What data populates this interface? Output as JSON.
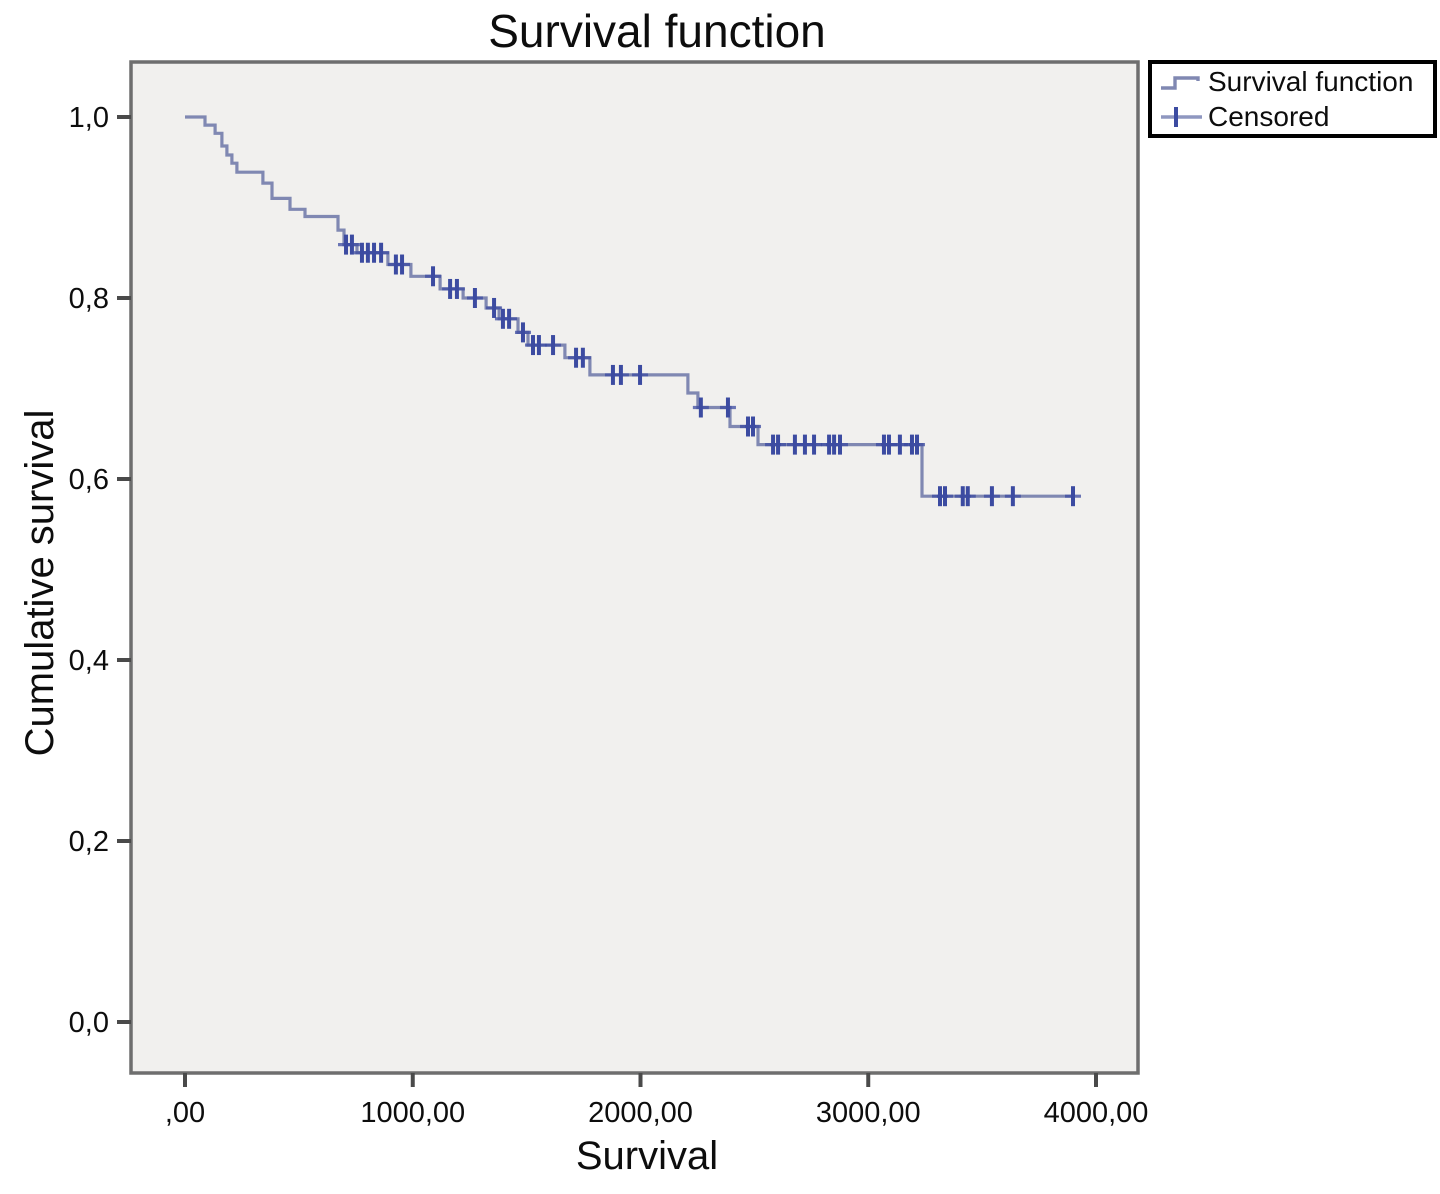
{
  "figure": {
    "title": "Survival function",
    "xlabel": "Survival",
    "ylabel": "Cumulative survival"
  },
  "legend": {
    "items": [
      {
        "label": "Survival function",
        "marker": "step-line-icon"
      },
      {
        "label": "Censored",
        "marker": "plus-marker-icon"
      }
    ]
  },
  "colors": {
    "curve": "#8088b2",
    "censor": "#3c4ba1",
    "plot_bg": "#f1f0ee",
    "plot_border": "#6e6e6e",
    "tick": "#4a4a4a",
    "text": "#0d0d0d",
    "legend_border": "#000000"
  },
  "chart_data": {
    "type": "line",
    "subtype": "kaplan-meier-step",
    "title": "Survival function",
    "xlabel": "Survival",
    "ylabel": "Cumulative survival",
    "xlim": [
      0,
      4000
    ],
    "ylim": [
      0,
      1
    ],
    "grid": false,
    "legend_position": "top-right-outside",
    "xticks": [
      {
        "v": 0,
        "label": ",00"
      },
      {
        "v": 1000,
        "label": "1000,00"
      },
      {
        "v": 2000,
        "label": "2000,00"
      },
      {
        "v": 3000,
        "label": "3000,00"
      },
      {
        "v": 4000,
        "label": "4000,00"
      }
    ],
    "yticks": [
      {
        "v": 0.0,
        "label": "0,0"
      },
      {
        "v": 0.2,
        "label": "0,2"
      },
      {
        "v": 0.4,
        "label": "0,4"
      },
      {
        "v": 0.6,
        "label": "0,6"
      },
      {
        "v": 0.8,
        "label": "0,8"
      },
      {
        "v": 1.0,
        "label": "1,0"
      }
    ],
    "series": [
      {
        "name": "Survival function",
        "steps": [
          [
            0,
            1.0
          ],
          [
            88,
            0.991
          ],
          [
            132,
            0.982
          ],
          [
            162,
            0.968
          ],
          [
            184,
            0.958
          ],
          [
            206,
            0.949
          ],
          [
            228,
            0.939
          ],
          [
            342,
            0.927
          ],
          [
            382,
            0.91
          ],
          [
            461,
            0.898
          ],
          [
            527,
            0.89
          ],
          [
            672,
            0.875
          ],
          [
            698,
            0.859
          ],
          [
            755,
            0.85
          ],
          [
            891,
            0.837
          ],
          [
            992,
            0.824
          ],
          [
            1120,
            0.81
          ],
          [
            1221,
            0.8
          ],
          [
            1322,
            0.789
          ],
          [
            1379,
            0.777
          ],
          [
            1462,
            0.762
          ],
          [
            1506,
            0.748
          ],
          [
            1668,
            0.734
          ],
          [
            1778,
            0.715
          ],
          [
            2208,
            0.695
          ],
          [
            2252,
            0.679
          ],
          [
            2393,
            0.658
          ],
          [
            2516,
            0.638
          ],
          [
            3236,
            0.581
          ]
        ],
        "end_time": 3908
      }
    ],
    "censored": [
      [
        707,
        0.859
      ],
      [
        733,
        0.859
      ],
      [
        777,
        0.85
      ],
      [
        803,
        0.85
      ],
      [
        830,
        0.85
      ],
      [
        861,
        0.85
      ],
      [
        926,
        0.837
      ],
      [
        953,
        0.837
      ],
      [
        1089,
        0.824
      ],
      [
        1164,
        0.81
      ],
      [
        1194,
        0.81
      ],
      [
        1273,
        0.8
      ],
      [
        1357,
        0.789
      ],
      [
        1396,
        0.777
      ],
      [
        1423,
        0.777
      ],
      [
        1484,
        0.762
      ],
      [
        1528,
        0.748
      ],
      [
        1554,
        0.748
      ],
      [
        1616,
        0.748
      ],
      [
        1717,
        0.734
      ],
      [
        1747,
        0.734
      ],
      [
        1879,
        0.715
      ],
      [
        1914,
        0.715
      ],
      [
        1998,
        0.715
      ],
      [
        2265,
        0.679
      ],
      [
        2384,
        0.679
      ],
      [
        2472,
        0.658
      ],
      [
        2494,
        0.658
      ],
      [
        2582,
        0.638
      ],
      [
        2604,
        0.638
      ],
      [
        2678,
        0.638
      ],
      [
        2722,
        0.638
      ],
      [
        2762,
        0.638
      ],
      [
        2828,
        0.638
      ],
      [
        2850,
        0.638
      ],
      [
        2876,
        0.638
      ],
      [
        3069,
        0.638
      ],
      [
        3091,
        0.638
      ],
      [
        3139,
        0.638
      ],
      [
        3192,
        0.638
      ],
      [
        3214,
        0.638
      ],
      [
        3315,
        0.581
      ],
      [
        3337,
        0.581
      ],
      [
        3415,
        0.581
      ],
      [
        3437,
        0.581
      ],
      [
        3543,
        0.581
      ],
      [
        3635,
        0.581
      ],
      [
        3899,
        0.581
      ]
    ]
  }
}
